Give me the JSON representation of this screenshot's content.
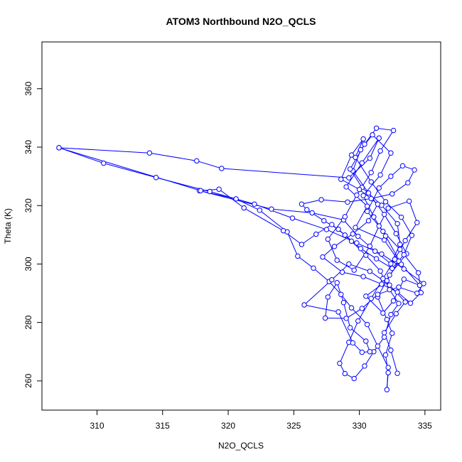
{
  "chart_data": {
    "type": "line",
    "title": "ATOM3 Northbound N2O_QCLS",
    "xlabel": "N2O_QCLS",
    "ylabel": "Theta (K)",
    "xlim": [
      305.8,
      336.2
    ],
    "ylim": [
      250,
      376
    ],
    "x_ticks": [
      310,
      315,
      320,
      325,
      330,
      335
    ],
    "y_ticks": [
      260,
      280,
      300,
      320,
      340,
      360
    ],
    "x_tick_labels": [
      "310",
      "315",
      "320",
      "325",
      "330",
      "335"
    ],
    "y_tick_labels": [
      "260",
      "280",
      "300",
      "320",
      "340",
      "360"
    ],
    "grid": false,
    "legend": "none",
    "marker": "open circle",
    "series_color": "#0000ff",
    "series": [
      {
        "points": [
          [
            307.1,
            339.8
          ],
          [
            314.0,
            338.0
          ],
          [
            317.6,
            335.3
          ],
          [
            319.5,
            332.7
          ],
          [
            329.2,
            329.5
          ],
          [
            330.8,
            336.2
          ],
          [
            331.5,
            343.1
          ],
          [
            330.2,
            334.6
          ],
          [
            329.0,
            326.4
          ],
          [
            330.6,
            319.8
          ],
          [
            329.7,
            312.5
          ],
          [
            331.9,
            308.2
          ],
          [
            333.0,
            301.0
          ],
          [
            332.1,
            294.3
          ],
          [
            330.5,
            289.0
          ],
          [
            331.8,
            283.2
          ],
          [
            332.6,
            287.4
          ],
          [
            333.4,
            294.8
          ],
          [
            334.6,
            292.7
          ],
          [
            333.2,
            299.9
          ],
          [
            332.0,
            309.6
          ],
          [
            331.1,
            316.1
          ],
          [
            330.3,
            323.4
          ],
          [
            331.6,
            330.5
          ],
          [
            332.4,
            338.0
          ],
          [
            331.0,
            344.2
          ],
          [
            330.1,
            339.1
          ],
          [
            329.5,
            331.9
          ],
          [
            330.7,
            324.3
          ],
          [
            331.9,
            317.0
          ],
          [
            332.8,
            310.4
          ],
          [
            333.6,
            303.5
          ],
          [
            332.3,
            296.2
          ],
          [
            331.4,
            288.7
          ],
          [
            332.1,
            281.0
          ],
          [
            332.5,
            276.3
          ],
          [
            332.0,
            268.9
          ],
          [
            332.2,
            262.8
          ],
          [
            332.1,
            257.0
          ],
          [
            332.2,
            264.6
          ],
          [
            331.4,
            271.9
          ],
          [
            330.6,
            279.3
          ],
          [
            329.4,
            285.0
          ],
          [
            328.6,
            289.6
          ],
          [
            327.7,
            294.0
          ],
          [
            326.5,
            298.6
          ],
          [
            325.3,
            302.7
          ],
          [
            324.5,
            311.0
          ],
          [
            322.4,
            318.4
          ],
          [
            320.6,
            322.3
          ],
          [
            317.8,
            325.1
          ],
          [
            323.3,
            318.8
          ],
          [
            326.4,
            317.5
          ],
          [
            328.8,
            315.1
          ],
          [
            329.9,
            309.5
          ],
          [
            331.2,
            304.4
          ],
          [
            332.4,
            300.1
          ],
          [
            333.1,
            306.7
          ],
          [
            332.9,
            313.8
          ],
          [
            331.7,
            320.1
          ],
          [
            330.2,
            326.2
          ],
          [
            329.3,
            332.5
          ],
          [
            330.4,
            341.0
          ],
          [
            331.3,
            346.5
          ],
          [
            332.6,
            345.7
          ],
          [
            331.6,
            338.7
          ],
          [
            330.9,
            331.3
          ],
          [
            329.8,
            323.6
          ],
          [
            328.9,
            316.2
          ],
          [
            327.6,
            308.5
          ],
          [
            328.3,
            301.3
          ],
          [
            329.6,
            297.9
          ],
          [
            330.8,
            306.1
          ],
          [
            331.5,
            313.0
          ],
          [
            332.2,
            319.1
          ],
          [
            333.8,
            321.5
          ],
          [
            334.4,
            314.2
          ],
          [
            333.5,
            308.0
          ],
          [
            332.7,
            301.6
          ],
          [
            331.8,
            295.0
          ],
          [
            330.9,
            288.2
          ],
          [
            329.9,
            280.5
          ],
          [
            329.2,
            273.2
          ],
          [
            328.5,
            266.0
          ],
          [
            328.9,
            262.5
          ],
          [
            329.6,
            260.8
          ],
          [
            330.4,
            265.1
          ],
          [
            331.1,
            270.0
          ],
          [
            331.9,
            275.0
          ],
          [
            332.4,
            282.7
          ],
          [
            333.0,
            286.5
          ],
          [
            332.3,
            291.2
          ],
          [
            331.6,
            297.6
          ],
          [
            330.5,
            303.0
          ],
          [
            329.4,
            307.8
          ],
          [
            328.4,
            311.9
          ],
          [
            327.3,
            314.8
          ],
          [
            326.0,
            318.6
          ],
          [
            325.6,
            320.5
          ],
          [
            327.1,
            322.0
          ],
          [
            329.1,
            321.2
          ],
          [
            330.9,
            322.4
          ],
          [
            332.5,
            324.0
          ],
          [
            333.7,
            327.8
          ],
          [
            334.2,
            332.2
          ],
          [
            333.3,
            333.6
          ],
          [
            332.4,
            330.0
          ],
          [
            331.5,
            326.0
          ],
          [
            330.6,
            318.0
          ],
          [
            331.8,
            311.2
          ],
          [
            333.1,
            305.0
          ],
          [
            334.5,
            297.0
          ],
          [
            334.7,
            290.2
          ],
          [
            333.9,
            286.6
          ],
          [
            332.9,
            290.4
          ],
          [
            331.7,
            293.1
          ],
          [
            330.3,
            295.7
          ],
          [
            328.7,
            297.2
          ],
          [
            327.2,
            302.4
          ],
          [
            328.1,
            306.0
          ],
          [
            329.5,
            310.3
          ],
          [
            330.7,
            314.8
          ],
          [
            331.4,
            320.5
          ],
          [
            330.0,
            325.5
          ],
          [
            328.6,
            329.0
          ],
          [
            329.4,
            337.3
          ],
          [
            330.3,
            342.8
          ],
          [
            329.7,
            336.5
          ],
          [
            330.9,
            328.1
          ],
          [
            332.0,
            321.3
          ],
          [
            333.2,
            316.0
          ],
          [
            334.0,
            309.8
          ],
          [
            333.4,
            303.2
          ],
          [
            332.5,
            298.5
          ],
          [
            331.3,
            301.8
          ],
          [
            330.1,
            305.3
          ],
          [
            328.9,
            309.9
          ],
          [
            327.9,
            313.5
          ],
          [
            326.7,
            310.2
          ],
          [
            325.6,
            306.7
          ],
          [
            324.2,
            311.4
          ],
          [
            321.2,
            319.2
          ],
          [
            319.3,
            325.6
          ],
          [
            317.9,
            325.1
          ],
          [
            307.1,
            339.8
          ],
          [
            310.5,
            334.5
          ],
          [
            314.5,
            329.6
          ],
          [
            318.6,
            324.8
          ],
          [
            322.0,
            320.5
          ],
          [
            324.9,
            315.7
          ],
          [
            327.5,
            311.8
          ],
          [
            329.8,
            307.2
          ],
          [
            331.7,
            303.4
          ],
          [
            333.4,
            298.3
          ],
          [
            334.9,
            293.3
          ],
          [
            334.4,
            290.0
          ],
          [
            333.0,
            292.1
          ],
          [
            331.4,
            289.6
          ],
          [
            330.2,
            284.8
          ],
          [
            329.0,
            281.4
          ],
          [
            327.4,
            281.5
          ],
          [
            327.6,
            288.7
          ],
          [
            328.3,
            293.6
          ],
          [
            328.8,
            286.8
          ],
          [
            329.3,
            278.2
          ],
          [
            330.5,
            273.6
          ],
          [
            330.8,
            270.0
          ],
          [
            330.2,
            269.8
          ],
          [
            329.5,
            273.0
          ],
          [
            328.4,
            283.6
          ],
          [
            325.8,
            286.0
          ],
          [
            327.9,
            294.6
          ],
          [
            329.2,
            300.0
          ],
          [
            330.8,
            297.5
          ],
          [
            332.3,
            292.8
          ],
          [
            333.5,
            287.0
          ],
          [
            332.8,
            283.0
          ],
          [
            331.9,
            276.5
          ],
          [
            332.4,
            270.5
          ],
          [
            332.9,
            262.6
          ]
        ]
      }
    ]
  }
}
